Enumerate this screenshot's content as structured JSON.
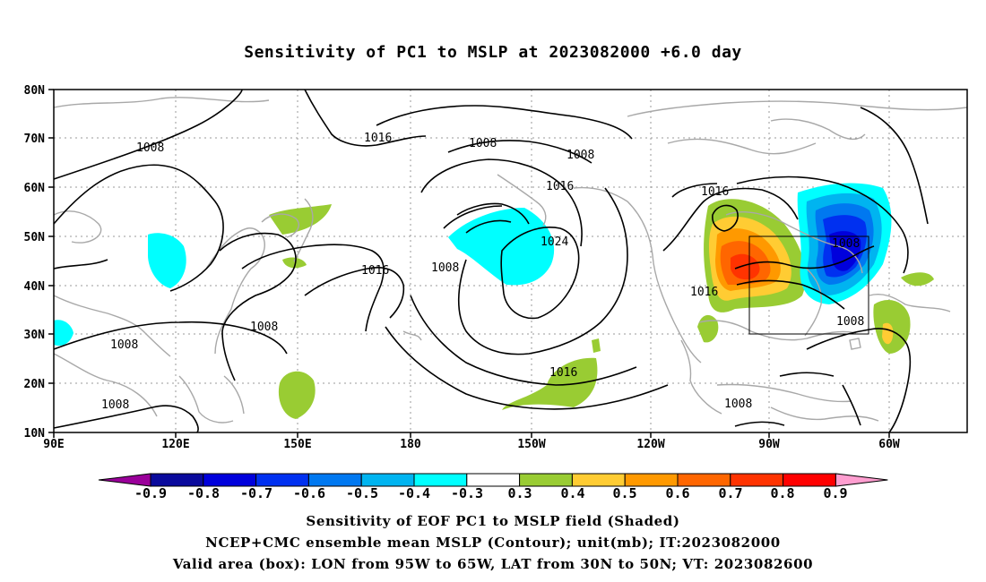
{
  "title": "Sensitivity of PC1 to MSLP at 2023082000 +6.0 day",
  "lat_labels": [
    "80N",
    "70N",
    "60N",
    "50N",
    "40N",
    "30N",
    "20N",
    "10N"
  ],
  "lon_labels": [
    "90E",
    "120E",
    "150E",
    "180",
    "150W",
    "120W",
    "90W",
    "60W"
  ],
  "contour_labels": [
    "1008",
    "1016",
    "1008",
    "1008",
    "1016",
    "1024",
    "1008",
    "1016",
    "1008",
    "1008",
    "1016",
    "1016",
    "1008",
    "1008",
    "1008",
    "1016"
  ],
  "colorbar": {
    "labels": [
      "-0.9",
      "-0.8",
      "-0.7",
      "-0.6",
      "-0.5",
      "-0.4",
      "-0.3",
      "0.3",
      "0.4",
      "0.5",
      "0.6",
      "0.7",
      "0.8",
      "0.9"
    ],
    "colors": [
      "#9a009a",
      "#0a0a9c",
      "#0000dc",
      "#0030f0",
      "#0078f0",
      "#00b4f0",
      "#00ffff",
      "#ffffff",
      "#99cc33",
      "#ffcc33",
      "#ff9900",
      "#ff6600",
      "#ff3300",
      "#ff0000",
      "#ff9ed0"
    ]
  },
  "captions": [
    "Sensitivity of EOF PC1 to MSLP field (Shaded)",
    "NCEP+CMC ensemble mean MSLP (Contour); unit(mb); IT:2023082000",
    "Valid area (box): LON from 95W to 65W, LAT from 30N to 50N; VT: 2023082600"
  ]
}
